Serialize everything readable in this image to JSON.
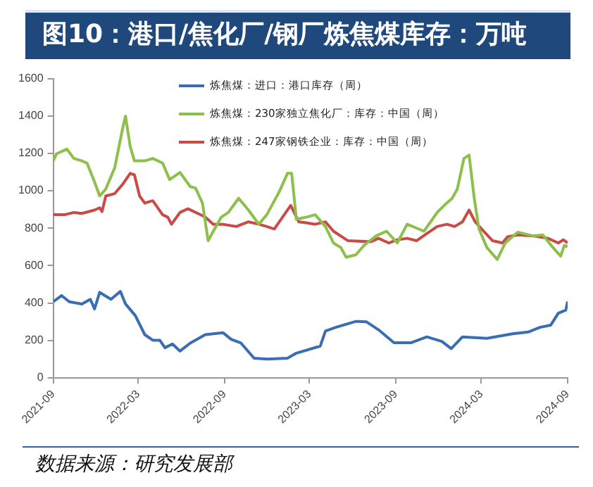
{
  "chart_data": {
    "type": "line",
    "title": "图10：港口/焦化厂/钢厂炼焦煤库存：万吨",
    "annotations": [
      "数据来源：研究发展部"
    ],
    "xlim": [
      "2021-09",
      "2024-09"
    ],
    "xticks": [
      "2021-09",
      "2022-03",
      "2022-09",
      "2023-03",
      "2023-09",
      "2024-03",
      "2024-09"
    ],
    "ylim": [
      0,
      1600
    ],
    "yticks": [
      0,
      200,
      400,
      600,
      800,
      1000,
      1200,
      1400,
      1600
    ],
    "grid": false,
    "legend": "top right",
    "marker": "none",
    "line_style": "solid",
    "series": [
      {
        "name": "炼焦煤：进口：港口库存（周）",
        "color": "#3a6db3",
        "x": [
          "2021-09-01",
          "2021-09-19",
          "2021-10-05",
          "2021-11-01",
          "2021-11-19",
          "2021-11-28",
          "2021-12-09",
          "2022-01-02",
          "2022-01-22",
          "2022-02-02",
          "2022-02-23",
          "2022-03-15",
          "2022-04-01",
          "2022-04-16",
          "2022-04-27",
          "2022-05-13",
          "2022-05-29",
          "2022-06-20",
          "2022-07-22",
          "2022-08-29",
          "2022-09-15",
          "2022-10-06",
          "2022-11-03",
          "2022-12-01",
          "2023-01-13",
          "2023-02-01",
          "2023-03-24",
          "2023-04-04",
          "2023-04-26",
          "2023-06-08",
          "2023-06-30",
          "2023-07-26",
          "2023-08-28",
          "2023-10-04",
          "2023-11-06",
          "2023-12-08",
          "2023-12-28",
          "2024-01-21",
          "2024-03-13",
          "2024-05-07",
          "2024-06-09",
          "2024-07-04",
          "2024-07-27",
          "2024-08-12",
          "2024-08-28",
          "2024-09-01"
        ],
        "values": [
          407,
          440,
          407,
          395,
          420,
          369,
          457,
          420,
          462,
          395,
          332,
          231,
          201,
          201,
          161,
          181,
          143,
          186,
          231,
          241,
          206,
          186,
          105,
          100,
          105,
          132,
          170,
          250,
          270,
          302,
          300,
          257,
          188,
          188,
          219,
          195,
          156,
          219,
          211,
          236,
          245,
          270,
          282,
          345,
          362,
          408
        ]
      },
      {
        "name": "炼焦煤：230家独立焦化厂：库存：中国（周）",
        "color": "#8dbf4b",
        "x": [
          "2021-09-01",
          "2021-09-08",
          "2021-09-30",
          "2021-10-15",
          "2021-11-01",
          "2021-11-12",
          "2021-11-28",
          "2021-12-09",
          "2021-12-22",
          "2022-01-10",
          "2022-01-27",
          "2022-02-02",
          "2022-02-12",
          "2022-02-21",
          "2022-03-15",
          "2022-04-01",
          "2022-04-22",
          "2022-05-07",
          "2022-05-29",
          "2022-06-20",
          "2022-07-01",
          "2022-07-16",
          "2022-07-28",
          "2022-08-08",
          "2022-08-25",
          "2022-09-09",
          "2022-10-01",
          "2022-10-22",
          "2022-11-13",
          "2022-11-30",
          "2022-12-27",
          "2023-01-13",
          "2023-01-22",
          "2023-02-01",
          "2023-02-22",
          "2023-03-13",
          "2023-04-04",
          "2023-04-21",
          "2023-05-07",
          "2023-05-18",
          "2023-06-08",
          "2023-06-25",
          "2023-07-21",
          "2023-08-12",
          "2023-09-04",
          "2023-09-25",
          "2023-10-31",
          "2023-11-28",
          "2023-12-13",
          "2023-12-30",
          "2024-01-10",
          "2024-01-24",
          "2024-02-04",
          "2024-02-15",
          "2024-02-25",
          "2024-03-13",
          "2024-04-04",
          "2024-04-21",
          "2024-05-18",
          "2024-06-19",
          "2024-07-10",
          "2024-08-01",
          "2024-08-17",
          "2024-08-25",
          "2024-09-01"
        ],
        "values": [
          1160,
          1198,
          1223,
          1173,
          1160,
          1148,
          1047,
          972,
          1010,
          1123,
          1336,
          1399,
          1236,
          1160,
          1160,
          1173,
          1148,
          1060,
          1098,
          1022,
          1015,
          934,
          733,
          784,
          859,
          884,
          960,
          897,
          821,
          872,
          997,
          1093,
          1093,
          847,
          859,
          872,
          809,
          721,
          696,
          645,
          658,
          708,
          759,
          784,
          721,
          821,
          784,
          884,
          922,
          960,
          1010,
          1173,
          1191,
          960,
          796,
          696,
          633,
          721,
          779,
          759,
          764,
          696,
          651,
          708,
          703
        ]
      },
      {
        "name": "炼焦煤：247家钢铁企业：库存：中国（周）",
        "color": "#c94a46",
        "x": [
          "2021-09-01",
          "2021-09-25",
          "2021-10-15",
          "2021-11-01",
          "2021-11-28",
          "2021-12-09",
          "2021-12-14",
          "2021-12-22",
          "2022-01-10",
          "2022-01-27",
          "2022-02-12",
          "2022-02-21",
          "2022-03-04",
          "2022-03-15",
          "2022-04-01",
          "2022-04-22",
          "2022-05-03",
          "2022-05-11",
          "2022-05-29",
          "2022-06-15",
          "2022-07-06",
          "2022-07-22",
          "2022-08-08",
          "2022-08-29",
          "2022-09-26",
          "2022-10-22",
          "2022-11-13",
          "2022-11-30",
          "2022-12-16",
          "2023-01-20",
          "2023-02-06",
          "2023-02-22",
          "2023-03-13",
          "2023-04-04",
          "2023-04-21",
          "2023-05-22",
          "2023-07-10",
          "2023-07-26",
          "2023-08-17",
          "2023-09-04",
          "2023-09-25",
          "2023-10-15",
          "2023-11-06",
          "2023-11-28",
          "2023-12-19",
          "2024-01-04",
          "2024-01-21",
          "2024-02-04",
          "2024-02-17",
          "2024-03-06",
          "2024-03-25",
          "2024-04-15",
          "2024-04-26",
          "2024-05-18",
          "2024-06-19",
          "2024-07-21",
          "2024-08-12",
          "2024-08-23",
          "2024-09-01"
        ],
        "values": [
          872,
          872,
          884,
          879,
          897,
          909,
          889,
          972,
          985,
          1035,
          1093,
          1085,
          972,
          934,
          947,
          872,
          859,
          821,
          884,
          904,
          879,
          859,
          821,
          821,
          809,
          834,
          821,
          809,
          796,
          922,
          834,
          829,
          821,
          834,
          784,
          733,
          728,
          746,
          721,
          738,
          746,
          733,
          771,
          809,
          821,
          809,
          834,
          897,
          834,
          784,
          733,
          721,
          754,
          764,
          759,
          746,
          721,
          738,
          721
        ]
      }
    ]
  }
}
